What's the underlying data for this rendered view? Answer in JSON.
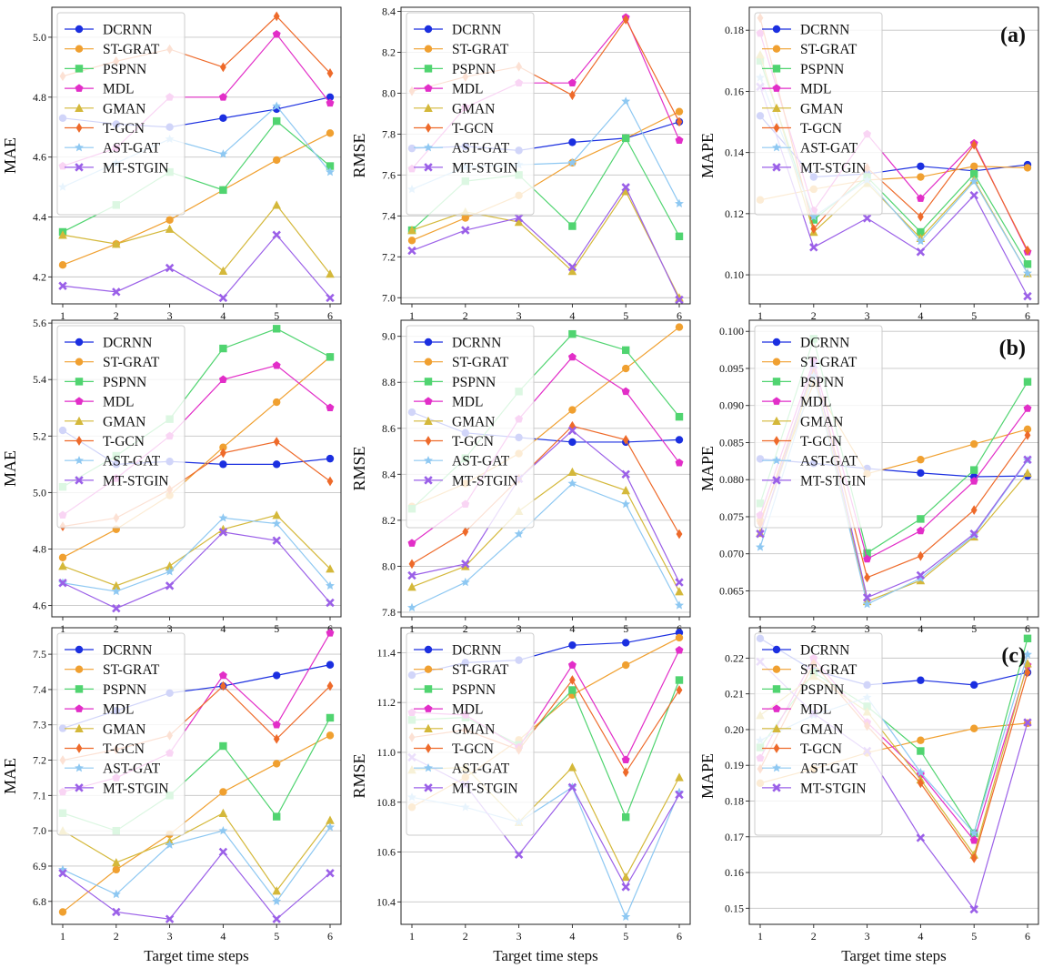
{
  "figure": {
    "xlabel": "Target time steps",
    "row_labels": [
      "(a)",
      "(b)",
      "(c)"
    ]
  },
  "series_styles": [
    {
      "name": "DCRNN",
      "color": "#1b2fe0",
      "marker": "circle"
    },
    {
      "name": "ST-GRAT",
      "color": "#f0a030",
      "marker": "circle"
    },
    {
      "name": "PSPNN",
      "color": "#50d470",
      "marker": "square"
    },
    {
      "name": "MDL",
      "color": "#e22ec8",
      "marker": "pentagon"
    },
    {
      "name": "GMAN",
      "color": "#d4b83a",
      "marker": "triangle"
    },
    {
      "name": "T-GCN",
      "color": "#ee6a2a",
      "marker": "diamond"
    },
    {
      "name": "AST-GAT",
      "color": "#8ec8f2",
      "marker": "star"
    },
    {
      "name": "MT-STGIN",
      "color": "#9b60e8",
      "marker": "x"
    }
  ],
  "chart_data": [
    {
      "id": "a-mae",
      "type": "line",
      "title": "",
      "xlabel": "",
      "ylabel": "MAE",
      "row_label": "",
      "ylim": [
        4.11,
        5.1
      ],
      "yticks": [
        "4.2",
        "4.4",
        "4.6",
        "4.8",
        "5.0"
      ],
      "grid": "horizontal",
      "legend": "top-left",
      "x": [
        1,
        2,
        3,
        4,
        5,
        6
      ],
      "series": [
        {
          "name": "DCRNN",
          "values": [
            4.73,
            4.71,
            4.7,
            4.73,
            4.76,
            4.8
          ]
        },
        {
          "name": "ST-GRAT",
          "values": [
            4.24,
            4.31,
            4.39,
            4.49,
            4.59,
            4.68
          ]
        },
        {
          "name": "PSPNN",
          "values": [
            4.35,
            4.44,
            4.55,
            4.49,
            4.72,
            4.57
          ]
        },
        {
          "name": "MDL",
          "values": [
            4.57,
            4.63,
            4.8,
            4.8,
            5.01,
            4.78
          ]
        },
        {
          "name": "GMAN",
          "values": [
            4.34,
            4.31,
            4.36,
            4.22,
            4.44,
            4.21
          ]
        },
        {
          "name": "T-GCN",
          "values": [
            4.87,
            4.92,
            4.96,
            4.9,
            5.07,
            4.88
          ]
        },
        {
          "name": "AST-GAT",
          "values": [
            4.5,
            4.58,
            4.66,
            4.61,
            4.77,
            4.55
          ]
        },
        {
          "name": "MT-STGIN",
          "values": [
            4.17,
            4.15,
            4.23,
            4.13,
            4.34,
            4.13
          ]
        }
      ]
    },
    {
      "id": "a-rmse",
      "type": "line",
      "title": "",
      "xlabel": "",
      "ylabel": "RMSE",
      "row_label": "",
      "ylim": [
        6.97,
        8.42
      ],
      "yticks": [
        "7.0",
        "7.2",
        "7.4",
        "7.6",
        "7.8",
        "8.0",
        "8.2",
        "8.4"
      ],
      "grid": "horizontal",
      "legend": "top-left",
      "x": [
        1,
        2,
        3,
        4,
        5,
        6
      ],
      "series": [
        {
          "name": "DCRNN",
          "values": [
            7.73,
            7.74,
            7.72,
            7.76,
            7.78,
            7.86
          ]
        },
        {
          "name": "ST-GRAT",
          "values": [
            7.28,
            7.39,
            7.5,
            7.66,
            7.78,
            7.91
          ]
        },
        {
          "name": "PSPNN",
          "values": [
            7.33,
            7.57,
            7.6,
            7.35,
            7.78,
            7.3
          ]
        },
        {
          "name": "MDL",
          "values": [
            7.63,
            7.93,
            8.05,
            8.05,
            8.37,
            7.77
          ]
        },
        {
          "name": "GMAN",
          "values": [
            7.33,
            7.42,
            7.37,
            7.13,
            7.52,
            7.0
          ]
        },
        {
          "name": "T-GCN",
          "values": [
            8.01,
            8.08,
            8.13,
            7.99,
            8.36,
            7.86
          ]
        },
        {
          "name": "AST-GAT",
          "values": [
            7.53,
            7.64,
            7.65,
            7.66,
            7.96,
            7.46
          ]
        },
        {
          "name": "MT-STGIN",
          "values": [
            7.23,
            7.33,
            7.39,
            7.15,
            7.54,
            6.99
          ]
        }
      ]
    },
    {
      "id": "a-mape",
      "type": "line",
      "title": "",
      "xlabel": "",
      "ylabel": "MAPE",
      "row_label": "(a)",
      "ylim": [
        0.0905,
        0.1875
      ],
      "yticks": [
        "0.10",
        "0.12",
        "0.14",
        "0.16",
        "0.18"
      ],
      "grid": "horizontal",
      "legend": "top-left",
      "x": [
        1,
        2,
        3,
        4,
        5,
        6
      ],
      "series": [
        {
          "name": "DCRNN",
          "values": [
            0.152,
            0.132,
            0.133,
            0.1355,
            0.134,
            0.136
          ]
        },
        {
          "name": "ST-GRAT",
          "values": [
            0.1245,
            0.128,
            0.131,
            0.132,
            0.1355,
            0.135
          ]
        },
        {
          "name": "PSPNN",
          "values": [
            0.17,
            0.118,
            0.132,
            0.114,
            0.133,
            0.1035
          ]
        },
        {
          "name": "MDL",
          "values": [
            0.179,
            0.121,
            0.146,
            0.125,
            0.143,
            0.1075
          ]
        },
        {
          "name": "GMAN",
          "values": [
            0.172,
            0.114,
            0.13,
            0.112,
            0.131,
            0.1005
          ]
        },
        {
          "name": "T-GCN",
          "values": [
            0.184,
            0.115,
            0.135,
            0.119,
            0.1425,
            0.108
          ]
        },
        {
          "name": "AST-GAT",
          "values": [
            0.1645,
            0.119,
            0.131,
            0.111,
            0.1305,
            0.1005
          ]
        },
        {
          "name": "MT-STGIN",
          "values": [
            0.1615,
            0.109,
            0.1185,
            0.1075,
            0.126,
            0.093
          ]
        }
      ]
    },
    {
      "id": "b-mae",
      "type": "line",
      "title": "",
      "xlabel": "",
      "ylabel": "MAE",
      "row_label": "",
      "ylim": [
        4.56,
        5.61
      ],
      "yticks": [
        "4.6",
        "4.8",
        "5.0",
        "5.2",
        "5.4",
        "5.6"
      ],
      "grid": "horizontal",
      "legend": "top-left",
      "x": [
        1,
        2,
        3,
        4,
        5,
        6
      ],
      "series": [
        {
          "name": "DCRNN",
          "values": [
            5.22,
            5.1,
            5.11,
            5.1,
            5.1,
            5.12
          ]
        },
        {
          "name": "ST-GRAT",
          "values": [
            4.77,
            4.87,
            4.99,
            5.16,
            5.32,
            5.48
          ]
        },
        {
          "name": "PSPNN",
          "values": [
            5.02,
            5.13,
            5.26,
            5.51,
            5.58,
            5.48
          ]
        },
        {
          "name": "MDL",
          "values": [
            4.92,
            5.05,
            5.2,
            5.4,
            5.45,
            5.3
          ]
        },
        {
          "name": "GMAN",
          "values": [
            4.74,
            4.67,
            4.74,
            4.87,
            4.92,
            4.73
          ]
        },
        {
          "name": "T-GCN",
          "values": [
            4.88,
            4.91,
            5.01,
            5.14,
            5.18,
            5.04
          ]
        },
        {
          "name": "AST-GAT",
          "values": [
            4.68,
            4.65,
            4.72,
            4.91,
            4.89,
            4.67
          ]
        },
        {
          "name": "MT-STGIN",
          "values": [
            4.68,
            4.59,
            4.67,
            4.86,
            4.83,
            4.61
          ]
        }
      ]
    },
    {
      "id": "b-rmse",
      "type": "line",
      "title": "",
      "xlabel": "",
      "ylabel": "RMSE",
      "row_label": "",
      "ylim": [
        7.78,
        9.07
      ],
      "yticks": [
        "7.8",
        "8.0",
        "8.2",
        "8.4",
        "8.6",
        "8.8",
        "9.0"
      ],
      "grid": "horizontal",
      "legend": "top-left",
      "x": [
        1,
        2,
        3,
        4,
        5,
        6
      ],
      "series": [
        {
          "name": "DCRNN",
          "values": [
            8.67,
            8.58,
            8.56,
            8.54,
            8.54,
            8.55
          ]
        },
        {
          "name": "ST-GRAT",
          "values": [
            8.26,
            8.36,
            8.49,
            8.68,
            8.86,
            9.04
          ]
        },
        {
          "name": "PSPNN",
          "values": [
            8.25,
            8.47,
            8.76,
            9.01,
            8.94,
            8.65
          ]
        },
        {
          "name": "MDL",
          "values": [
            8.1,
            8.27,
            8.64,
            8.91,
            8.76,
            8.45
          ]
        },
        {
          "name": "GMAN",
          "values": [
            7.91,
            8.0,
            8.24,
            8.41,
            8.33,
            7.89
          ]
        },
        {
          "name": "T-GCN",
          "values": [
            8.01,
            8.15,
            8.38,
            8.61,
            8.55,
            8.14
          ]
        },
        {
          "name": "AST-GAT",
          "values": [
            7.82,
            7.93,
            8.14,
            8.36,
            8.27,
            7.83
          ]
        },
        {
          "name": "MT-STGIN",
          "values": [
            7.96,
            8.01,
            8.38,
            8.59,
            8.4,
            7.93
          ]
        }
      ]
    },
    {
      "id": "b-mape",
      "type": "line",
      "title": "",
      "xlabel": "",
      "ylabel": "MAPE",
      "row_label": "(b)",
      "ylim": [
        0.0615,
        0.1015
      ],
      "yticks": [
        "0.065",
        "0.070",
        "0.075",
        "0.080",
        "0.085",
        "0.090",
        "0.095",
        "0.100"
      ],
      "grid": "horizontal",
      "legend": "top-left",
      "x": [
        1,
        2,
        3,
        4,
        5,
        6
      ],
      "series": [
        {
          "name": "DCRNN",
          "values": [
            0.0828,
            0.0822,
            0.0815,
            0.0809,
            0.0804,
            0.0805
          ]
        },
        {
          "name": "ST-GRAT",
          "values": [
            0.0745,
            0.093,
            0.0808,
            0.0827,
            0.0848,
            0.0868
          ]
        },
        {
          "name": "PSPNN",
          "values": [
            0.0768,
            0.099,
            0.0701,
            0.0747,
            0.0813,
            0.0932
          ]
        },
        {
          "name": "MDL",
          "values": [
            0.0752,
            0.096,
            0.0693,
            0.0731,
            0.0798,
            0.0896
          ]
        },
        {
          "name": "GMAN",
          "values": [
            0.0728,
            0.0945,
            0.0636,
            0.0664,
            0.0723,
            0.0809
          ]
        },
        {
          "name": "T-GCN",
          "values": [
            0.0741,
            0.095,
            0.0668,
            0.0697,
            0.0759,
            0.086
          ]
        },
        {
          "name": "AST-GAT",
          "values": [
            0.0709,
            0.094,
            0.0632,
            0.0667,
            0.0725,
            0.0826
          ]
        },
        {
          "name": "MT-STGIN",
          "values": [
            0.0727,
            0.0955,
            0.0641,
            0.0671,
            0.0727,
            0.0827
          ]
        }
      ]
    },
    {
      "id": "c-mae",
      "type": "line",
      "title": "",
      "xlabel": "",
      "ylabel": "MAE",
      "row_label": "",
      "ylim": [
        6.735,
        7.575
      ],
      "yticks": [
        "6.8",
        "6.9",
        "7.0",
        "7.1",
        "7.2",
        "7.3",
        "7.4",
        "7.5"
      ],
      "grid": "horizontal",
      "legend": "top-left",
      "x": [
        1,
        2,
        3,
        4,
        5,
        6
      ],
      "series": [
        {
          "name": "DCRNN",
          "values": [
            7.29,
            7.34,
            7.39,
            7.41,
            7.44,
            7.47
          ]
        },
        {
          "name": "ST-GRAT",
          "values": [
            6.77,
            6.89,
            6.99,
            7.11,
            7.19,
            7.27
          ]
        },
        {
          "name": "PSPNN",
          "values": [
            7.05,
            7.0,
            7.1,
            7.24,
            7.04,
            7.32
          ]
        },
        {
          "name": "MDL",
          "values": [
            7.11,
            7.15,
            7.22,
            7.44,
            7.3,
            7.56
          ]
        },
        {
          "name": "GMAN",
          "values": [
            7.0,
            6.91,
            6.97,
            7.05,
            6.83,
            7.03
          ]
        },
        {
          "name": "T-GCN",
          "values": [
            7.2,
            7.23,
            7.27,
            7.41,
            7.26,
            7.41
          ]
        },
        {
          "name": "AST-GAT",
          "values": [
            6.89,
            6.82,
            6.96,
            7.0,
            6.8,
            7.01
          ]
        },
        {
          "name": "MT-STGIN",
          "values": [
            6.88,
            6.77,
            6.75,
            6.94,
            6.75,
            6.88
          ]
        }
      ]
    },
    {
      "id": "c-rmse",
      "type": "line",
      "title": "",
      "xlabel": "",
      "ylabel": "RMSE",
      "row_label": "",
      "ylim": [
        10.31,
        11.5
      ],
      "yticks": [
        "10.4",
        "10.6",
        "10.8",
        "11.0",
        "11.2",
        "11.4"
      ],
      "grid": "horizontal",
      "legend": "top-left",
      "x": [
        1,
        2,
        3,
        4,
        5,
        6
      ],
      "series": [
        {
          "name": "DCRNN",
          "values": [
            11.31,
            11.36,
            11.37,
            11.43,
            11.44,
            11.48
          ]
        },
        {
          "name": "ST-GRAT",
          "values": [
            10.78,
            10.9,
            11.05,
            11.23,
            11.35,
            11.46
          ]
        },
        {
          "name": "PSPNN",
          "values": [
            11.13,
            11.14,
            11.03,
            11.25,
            10.74,
            11.29
          ]
        },
        {
          "name": "MDL",
          "values": [
            11.16,
            11.15,
            11.02,
            11.35,
            10.97,
            11.41
          ]
        },
        {
          "name": "GMAN",
          "values": [
            10.93,
            10.94,
            10.72,
            10.94,
            10.5,
            10.9
          ]
        },
        {
          "name": "T-GCN",
          "values": [
            11.06,
            11.09,
            11.01,
            11.29,
            10.92,
            11.25
          ]
        },
        {
          "name": "AST-GAT",
          "values": [
            10.82,
            10.78,
            10.72,
            10.86,
            10.34,
            10.84
          ]
        },
        {
          "name": "MT-STGIN",
          "values": [
            10.98,
            10.87,
            10.59,
            10.86,
            10.46,
            10.83
          ]
        }
      ]
    },
    {
      "id": "c-mape",
      "type": "line",
      "title": "",
      "xlabel": "",
      "ylabel": "MAPE",
      "row_label": "(c)",
      "ylim": [
        0.1455,
        0.2285
      ],
      "yticks": [
        "0.15",
        "0.16",
        "0.17",
        "0.18",
        "0.19",
        "0.20",
        "0.21",
        "0.22"
      ],
      "grid": "horizontal",
      "legend": "top-left",
      "x": [
        1,
        2,
        3,
        4,
        5,
        6
      ],
      "series": [
        {
          "name": "DCRNN",
          "values": [
            0.2255,
            0.2165,
            0.2125,
            0.2138,
            0.2125,
            0.216
          ]
        },
        {
          "name": "ST-GRAT",
          "values": [
            0.185,
            0.189,
            0.1935,
            0.197,
            0.2003,
            0.2018
          ]
        },
        {
          "name": "PSPNN",
          "values": [
            0.195,
            0.216,
            0.2065,
            0.194,
            0.171,
            0.2255
          ]
        },
        {
          "name": "MDL",
          "values": [
            0.192,
            0.22,
            0.202,
            0.1875,
            0.169,
            0.218
          ]
        },
        {
          "name": "GMAN",
          "values": [
            0.204,
            0.215,
            0.205,
            0.186,
            0.165,
            0.2185
          ]
        },
        {
          "name": "T-GCN",
          "values": [
            0.189,
            0.2185,
            0.201,
            0.185,
            0.164,
            0.216
          ]
        },
        {
          "name": "AST-GAT",
          "values": [
            0.197,
            0.204,
            0.209,
            0.188,
            0.171,
            0.221
          ]
        },
        {
          "name": "MT-STGIN",
          "values": [
            0.219,
            0.2045,
            0.194,
            0.1697,
            0.1497,
            0.202
          ]
        }
      ]
    }
  ]
}
